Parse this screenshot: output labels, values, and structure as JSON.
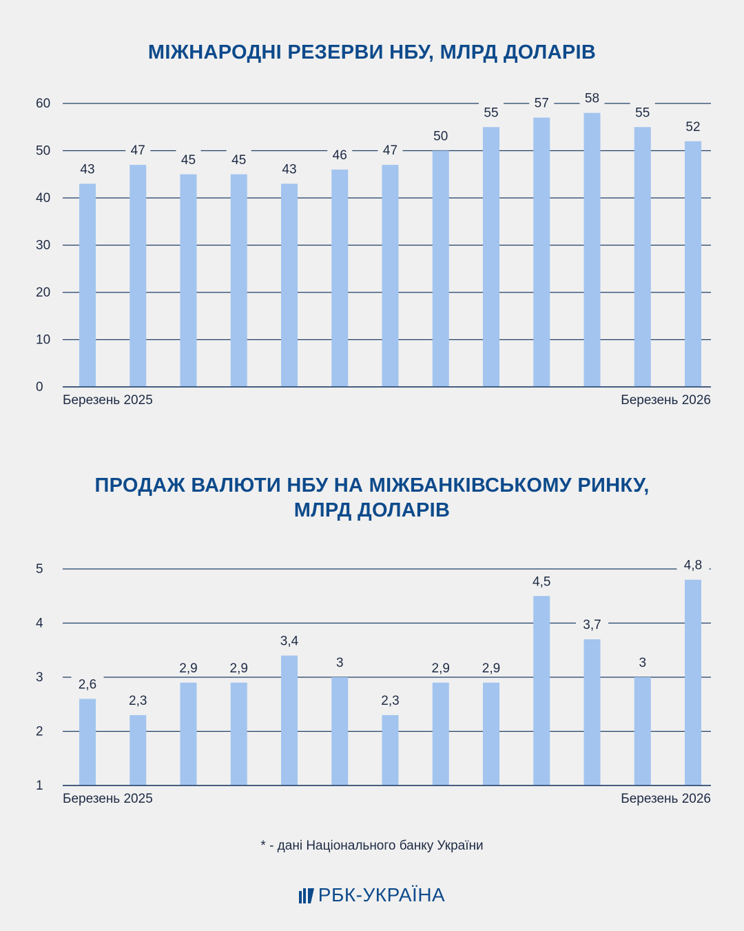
{
  "charts": [
    {
      "title": "МІЖНАРОДНІ РЕЗЕРВИ НБУ, МЛРД ДОЛАРІВ",
      "chart_data": {
        "type": "bar",
        "title": "МІЖНАРОДНІ РЕЗЕРВИ НБУ, МЛРД ДОЛАРІВ",
        "categories": [
          "Березень 2025",
          "",
          "",
          "",
          "",
          "",
          "",
          "",
          "",
          "",
          "",
          "",
          "Березень 2026"
        ],
        "values": [
          43,
          47,
          45,
          45,
          43,
          46,
          47,
          50,
          55,
          57,
          58,
          55,
          52
        ],
        "labels": [
          "43",
          "47",
          "45",
          "45",
          "43",
          "46",
          "47",
          "50",
          "55",
          "57",
          "58",
          "55",
          "52"
        ],
        "yticks": [
          "0",
          "10",
          "20",
          "30",
          "40",
          "50",
          "60"
        ],
        "ylim": [
          0,
          60
        ],
        "xlabel_start": "Березень 2025",
        "xlabel_end": "Березень 2026",
        "grid": true
      }
    },
    {
      "title_line1": "ПРОДАЖ ВАЛЮТИ НБУ НА МІЖБАНКІВСЬКОМУ РИНКУ,",
      "title_line2": "МЛРД ДОЛАРІВ",
      "chart_data": {
        "type": "bar",
        "title": "ПРОДАЖ ВАЛЮТИ НБУ НА МІЖБАНКІВСЬКОМУ РИНКУ, МЛРД ДОЛАРІВ",
        "categories": [
          "Березень 2025",
          "",
          "",
          "",
          "",
          "",
          "",
          "",
          "",
          "",
          "",
          "",
          "Березень 2026"
        ],
        "values": [
          2.6,
          2.3,
          2.9,
          2.9,
          3.4,
          3,
          2.3,
          2.9,
          2.9,
          4.5,
          3.7,
          3,
          4.8
        ],
        "labels": [
          "2,6",
          "2,3",
          "2,9",
          "2,9",
          "3,4",
          "3",
          "2,3",
          "2,9",
          "2,9",
          "4,5",
          "3,7",
          "3",
          "4,8"
        ],
        "yticks": [
          "1",
          "2",
          "3",
          "4",
          "5"
        ],
        "ylim": [
          1,
          5
        ],
        "xlabel_start": "Березень 2025",
        "xlabel_end": "Березень 2026",
        "grid": true
      }
    }
  ],
  "footnote": "* - дані Національного банку України",
  "logo": "РБК-УКРАЇНА",
  "colors": {
    "title": "#0d4a8b",
    "bar": "#a2c4ef",
    "grid": "#1e3d66",
    "text": "#1d2a44"
  }
}
